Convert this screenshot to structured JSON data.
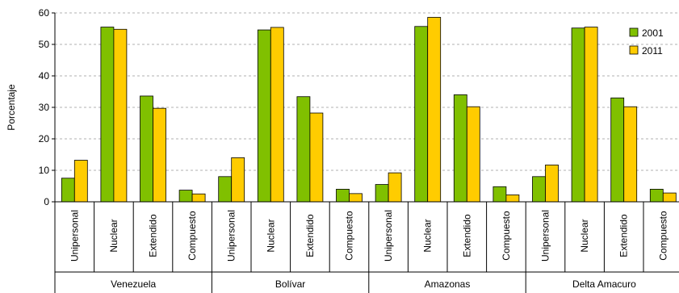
{
  "chart_data": {
    "type": "bar",
    "ylabel": "Porcentaje",
    "ylim": [
      0,
      60
    ],
    "yticks": [
      0,
      10,
      20,
      30,
      40,
      50,
      60
    ],
    "grid": "horizontal-dashed",
    "legend_position": "top-right",
    "groups": [
      {
        "name": "Venezuela",
        "categories": [
          "Unipersonal",
          "Nuclear",
          "Extendido",
          "Compuesto"
        ]
      },
      {
        "name": "Bolívar",
        "categories": [
          "Unipersonal",
          "Nuclear",
          "Extendido",
          "Compuesto"
        ]
      },
      {
        "name": "Amazonas",
        "categories": [
          "Unipersonal",
          "Nuclear",
          "Extendido",
          "Compuesto"
        ]
      },
      {
        "name": "Delta Amacuro",
        "categories": [
          "Unipersonal",
          "Nuclear",
          "Extendido",
          "Compuesto"
        ]
      }
    ],
    "series": [
      {
        "name": "2001",
        "color": "#80c000",
        "values": [
          7.5,
          55.5,
          33.6,
          3.7,
          8.0,
          54.6,
          33.4,
          4.0,
          5.5,
          55.7,
          34.0,
          4.8,
          8.0,
          55.2,
          33.0,
          4.0
        ]
      },
      {
        "name": "2011",
        "color": "#ffcc00",
        "values": [
          13.2,
          54.8,
          29.7,
          2.5,
          14.0,
          55.4,
          28.2,
          2.6,
          9.2,
          58.6,
          30.2,
          2.2,
          11.7,
          55.5,
          30.2,
          2.8
        ]
      }
    ]
  }
}
